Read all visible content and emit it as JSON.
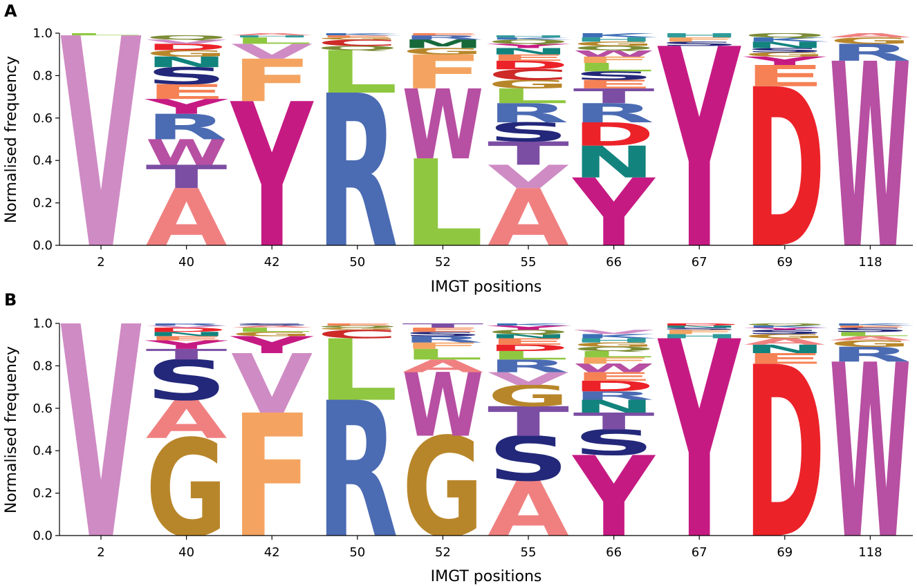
{
  "chart_data": [
    {
      "panel": "A",
      "type": "sequence-logo",
      "xlabel": "IMGT positions",
      "ylabel": "Normalised frequency",
      "ylim": [
        0,
        1.0
      ],
      "yticks": [
        "0.0",
        "0.2",
        "0.4",
        "0.6",
        "0.8",
        "1.0"
      ],
      "categories": [
        "2",
        "40",
        "42",
        "50",
        "52",
        "55",
        "66",
        "67",
        "69",
        "118"
      ],
      "columns": [
        {
          "position": "2",
          "stack": [
            {
              "aa": "V",
              "freq": 0.99
            },
            {
              "aa": "L",
              "freq": 0.01
            }
          ]
        },
        {
          "position": "40",
          "stack": [
            {
              "aa": "A",
              "freq": 0.27
            },
            {
              "aa": "T",
              "freq": 0.11
            },
            {
              "aa": "W",
              "freq": 0.12
            },
            {
              "aa": "R",
              "freq": 0.12
            },
            {
              "aa": "Y",
              "freq": 0.07
            },
            {
              "aa": "E",
              "freq": 0.07
            },
            {
              "aa": "S",
              "freq": 0.08
            },
            {
              "aa": "N",
              "freq": 0.05
            },
            {
              "aa": "G",
              "freq": 0.03
            },
            {
              "aa": "D",
              "freq": 0.03
            },
            {
              "aa": "V",
              "freq": 0.02
            },
            {
              "aa": "Q",
              "freq": 0.02
            }
          ]
        },
        {
          "position": "42",
          "stack": [
            {
              "aa": "Y",
              "freq": 0.68
            },
            {
              "aa": "F",
              "freq": 0.2
            },
            {
              "aa": "V",
              "freq": 0.07
            },
            {
              "aa": "L",
              "freq": 0.03
            },
            {
              "aa": "H",
              "freq": 0.01
            },
            {
              "aa": "A",
              "freq": 0.01
            }
          ]
        },
        {
          "position": "50",
          "stack": [
            {
              "aa": "R",
              "freq": 0.72
            },
            {
              "aa": "L",
              "freq": 0.2
            },
            {
              "aa": "Q",
              "freq": 0.02
            },
            {
              "aa": "C",
              "freq": 0.03
            },
            {
              "aa": "G",
              "freq": 0.01
            },
            {
              "aa": "E",
              "freq": 0.01
            },
            {
              "aa": "K",
              "freq": 0.01
            }
          ]
        },
        {
          "position": "52",
          "stack": [
            {
              "aa": "L",
              "freq": 0.41
            },
            {
              "aa": "W",
              "freq": 0.33
            },
            {
              "aa": "F",
              "freq": 0.16
            },
            {
              "aa": "G",
              "freq": 0.03
            },
            {
              "aa": "M",
              "freq": 0.04
            },
            {
              "aa": "R",
              "freq": 0.02
            },
            {
              "aa": "E",
              "freq": 0.01
            }
          ]
        },
        {
          "position": "55",
          "stack": [
            {
              "aa": "A",
              "freq": 0.27
            },
            {
              "aa": "V",
              "freq": 0.11
            },
            {
              "aa": "T",
              "freq": 0.11
            },
            {
              "aa": "S",
              "freq": 0.09
            },
            {
              "aa": "R",
              "freq": 0.09
            },
            {
              "aa": "L",
              "freq": 0.07
            },
            {
              "aa": "G",
              "freq": 0.04
            },
            {
              "aa": "C",
              "freq": 0.05
            },
            {
              "aa": "D",
              "freq": 0.04
            },
            {
              "aa": "E",
              "freq": 0.03
            },
            {
              "aa": "N",
              "freq": 0.03
            },
            {
              "aa": "Y",
              "freq": 0.02
            },
            {
              "aa": "Q",
              "freq": 0.02
            },
            {
              "aa": "K",
              "freq": 0.01
            },
            {
              "aa": "H",
              "freq": 0.01
            }
          ]
        },
        {
          "position": "66",
          "stack": [
            {
              "aa": "Y",
              "freq": 0.32
            },
            {
              "aa": "N",
              "freq": 0.15
            },
            {
              "aa": "D",
              "freq": 0.11
            },
            {
              "aa": "R",
              "freq": 0.09
            },
            {
              "aa": "T",
              "freq": 0.07
            },
            {
              "aa": "E",
              "freq": 0.04
            },
            {
              "aa": "S",
              "freq": 0.04
            },
            {
              "aa": "L",
              "freq": 0.04
            },
            {
              "aa": "F",
              "freq": 0.03
            },
            {
              "aa": "W",
              "freq": 0.03
            },
            {
              "aa": "Q",
              "freq": 0.02
            },
            {
              "aa": "G",
              "freq": 0.02
            },
            {
              "aa": "H",
              "freq": 0.02
            },
            {
              "aa": "K",
              "freq": 0.02
            }
          ]
        },
        {
          "position": "67",
          "stack": [
            {
              "aa": "Y",
              "freq": 0.94
            },
            {
              "aa": "S",
              "freq": 0.02
            },
            {
              "aa": "F",
              "freq": 0.02
            },
            {
              "aa": "H",
              "freq": 0.02
            }
          ]
        },
        {
          "position": "69",
          "stack": [
            {
              "aa": "D",
              "freq": 0.75
            },
            {
              "aa": "E",
              "freq": 0.1
            },
            {
              "aa": "Y",
              "freq": 0.04
            },
            {
              "aa": "G",
              "freq": 0.02
            },
            {
              "aa": "S",
              "freq": 0.02
            },
            {
              "aa": "N",
              "freq": 0.03
            },
            {
              "aa": "K",
              "freq": 0.02
            },
            {
              "aa": "Q",
              "freq": 0.02
            }
          ]
        },
        {
          "position": "118",
          "stack": [
            {
              "aa": "W",
              "freq": 0.87
            },
            {
              "aa": "R",
              "freq": 0.08
            },
            {
              "aa": "G",
              "freq": 0.03
            },
            {
              "aa": "A",
              "freq": 0.02
            }
          ]
        }
      ]
    },
    {
      "panel": "B",
      "type": "sequence-logo",
      "xlabel": "IMGT positions",
      "ylabel": "Normalised frequency",
      "ylim": [
        0,
        1.0
      ],
      "yticks": [
        "0.0",
        "0.2",
        "0.4",
        "0.6",
        "0.8",
        "1.0"
      ],
      "categories": [
        "2",
        "40",
        "42",
        "50",
        "52",
        "55",
        "66",
        "67",
        "69",
        "118"
      ],
      "columns": [
        {
          "position": "2",
          "stack": [
            {
              "aa": "V",
              "freq": 1.0
            }
          ]
        },
        {
          "position": "40",
          "stack": [
            {
              "aa": "G",
              "freq": 0.46
            },
            {
              "aa": "A",
              "freq": 0.18
            },
            {
              "aa": "S",
              "freq": 0.19
            },
            {
              "aa": "T",
              "freq": 0.05
            },
            {
              "aa": "Y",
              "freq": 0.04
            },
            {
              "aa": "E",
              "freq": 0.02
            },
            {
              "aa": "N",
              "freq": 0.02
            },
            {
              "aa": "D",
              "freq": 0.02
            },
            {
              "aa": "V",
              "freq": 0.01
            },
            {
              "aa": "R",
              "freq": 0.01
            }
          ]
        },
        {
          "position": "42",
          "stack": [
            {
              "aa": "F",
              "freq": 0.58
            },
            {
              "aa": "V",
              "freq": 0.28
            },
            {
              "aa": "Y",
              "freq": 0.08
            },
            {
              "aa": "G",
              "freq": 0.02
            },
            {
              "aa": "L",
              "freq": 0.02
            },
            {
              "aa": "A",
              "freq": 0.01
            },
            {
              "aa": "S",
              "freq": 0.01
            }
          ]
        },
        {
          "position": "50",
          "stack": [
            {
              "aa": "R",
              "freq": 0.64
            },
            {
              "aa": "L",
              "freq": 0.29
            },
            {
              "aa": "C",
              "freq": 0.04
            },
            {
              "aa": "G",
              "freq": 0.01
            },
            {
              "aa": "Q",
              "freq": 0.01
            },
            {
              "aa": "E",
              "freq": 0.01
            }
          ]
        },
        {
          "position": "52",
          "stack": [
            {
              "aa": "G",
              "freq": 0.47
            },
            {
              "aa": "W",
              "freq": 0.3
            },
            {
              "aa": "A",
              "freq": 0.06
            },
            {
              "aa": "L",
              "freq": 0.05
            },
            {
              "aa": "F",
              "freq": 0.03
            },
            {
              "aa": "R",
              "freq": 0.03
            },
            {
              "aa": "S",
              "freq": 0.02
            },
            {
              "aa": "E",
              "freq": 0.02
            },
            {
              "aa": "T",
              "freq": 0.02
            }
          ]
        },
        {
          "position": "55",
          "stack": [
            {
              "aa": "A",
              "freq": 0.26
            },
            {
              "aa": "S",
              "freq": 0.21
            },
            {
              "aa": "T",
              "freq": 0.14
            },
            {
              "aa": "G",
              "freq": 0.1
            },
            {
              "aa": "V",
              "freq": 0.06
            },
            {
              "aa": "R",
              "freq": 0.06
            },
            {
              "aa": "L",
              "freq": 0.04
            },
            {
              "aa": "D",
              "freq": 0.03
            },
            {
              "aa": "E",
              "freq": 0.03
            },
            {
              "aa": "N",
              "freq": 0.02
            },
            {
              "aa": "Q",
              "freq": 0.02
            },
            {
              "aa": "Y",
              "freq": 0.02
            },
            {
              "aa": "K",
              "freq": 0.01
            }
          ]
        },
        {
          "position": "66",
          "stack": [
            {
              "aa": "Y",
              "freq": 0.38
            },
            {
              "aa": "S",
              "freq": 0.12
            },
            {
              "aa": "T",
              "freq": 0.08
            },
            {
              "aa": "N",
              "freq": 0.06
            },
            {
              "aa": "R",
              "freq": 0.04
            },
            {
              "aa": "D",
              "freq": 0.05
            },
            {
              "aa": "E",
              "freq": 0.04
            },
            {
              "aa": "W",
              "freq": 0.04
            },
            {
              "aa": "F",
              "freq": 0.03
            },
            {
              "aa": "L",
              "freq": 0.03
            },
            {
              "aa": "Q",
              "freq": 0.02
            },
            {
              "aa": "G",
              "freq": 0.02
            },
            {
              "aa": "H",
              "freq": 0.02
            },
            {
              "aa": "K",
              "freq": 0.02
            },
            {
              "aa": "V",
              "freq": 0.02
            }
          ]
        },
        {
          "position": "67",
          "stack": [
            {
              "aa": "Y",
              "freq": 0.93
            },
            {
              "aa": "H",
              "freq": 0.02
            },
            {
              "aa": "F",
              "freq": 0.02
            },
            {
              "aa": "S",
              "freq": 0.01
            },
            {
              "aa": "N",
              "freq": 0.01
            },
            {
              "aa": "D",
              "freq": 0.01
            }
          ]
        },
        {
          "position": "69",
          "stack": [
            {
              "aa": "D",
              "freq": 0.81
            },
            {
              "aa": "E",
              "freq": 0.05
            },
            {
              "aa": "N",
              "freq": 0.04
            },
            {
              "aa": "A",
              "freq": 0.03
            },
            {
              "aa": "G",
              "freq": 0.02
            },
            {
              "aa": "S",
              "freq": 0.02
            },
            {
              "aa": "Y",
              "freq": 0.01
            },
            {
              "aa": "K",
              "freq": 0.01
            },
            {
              "aa": "Q",
              "freq": 0.01
            }
          ]
        },
        {
          "position": "118",
          "stack": [
            {
              "aa": "W",
              "freq": 0.82
            },
            {
              "aa": "R",
              "freq": 0.07
            },
            {
              "aa": "G",
              "freq": 0.03
            },
            {
              "aa": "A",
              "freq": 0.02
            },
            {
              "aa": "L",
              "freq": 0.02
            },
            {
              "aa": "S",
              "freq": 0.02
            },
            {
              "aa": "E",
              "freq": 0.01
            },
            {
              "aa": "K",
              "freq": 0.01
            }
          ]
        }
      ]
    }
  ],
  "colors": {
    "A": "#f08080",
    "C": "#cd2a28",
    "D": "#ec2229",
    "E": "#f58155",
    "F": "#f4a460",
    "G": "#b8862a",
    "H": "#2f9b9a",
    "I": "#6fb63c",
    "K": "#3d6fb6",
    "L": "#8fc740",
    "M": "#17693a",
    "N": "#12837d",
    "P": "#d0a060",
    "Q": "#7b8c35",
    "R": "#4b6bb3",
    "S": "#23287a",
    "T": "#7b4ea3",
    "V": "#cf8bc4",
    "W": "#b74fa2",
    "Y": "#c61a83"
  }
}
